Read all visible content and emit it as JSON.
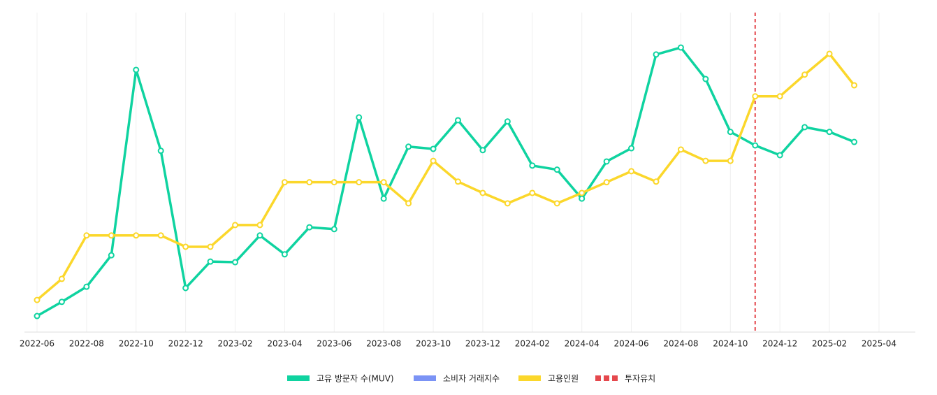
{
  "chart_data": {
    "type": "line",
    "x": [
      "2022-06",
      "2022-07",
      "2022-08",
      "2022-09",
      "2022-10",
      "2022-11",
      "2022-12",
      "2023-01",
      "2023-02",
      "2023-03",
      "2023-04",
      "2023-05",
      "2023-06",
      "2023-07",
      "2023-08",
      "2023-09",
      "2023-10",
      "2023-11",
      "2023-12",
      "2024-01",
      "2024-02",
      "2024-03",
      "2024-04",
      "2024-05",
      "2024-06",
      "2024-07",
      "2024-08",
      "2024-09",
      "2024-10",
      "2024-11",
      "2024-12",
      "2025-01",
      "2025-02",
      "2025-03"
    ],
    "xticks": [
      "2022-06",
      "2022-08",
      "2022-10",
      "2022-12",
      "2023-02",
      "2023-04",
      "2023-06",
      "2023-08",
      "2023-10",
      "2023-12",
      "2024-02",
      "2024-04",
      "2024-06",
      "2024-08",
      "2024-10",
      "2024-12",
      "2025-02",
      "2025-04"
    ],
    "ylim": [
      0,
      101.5
    ],
    "grid": true,
    "series": [
      {
        "name": "고유 방문자 수(MUV)",
        "color": "#0fd3a0",
        "values": [
          5.1,
          9.6,
          14.4,
          24.4,
          83.3,
          57.6,
          14.0,
          22.4,
          22.2,
          30.7,
          24.7,
          33.3,
          32.7,
          68.2,
          42.4,
          58.9,
          58.2,
          67.3,
          57.8,
          66.9,
          52.9,
          51.6,
          42.4,
          54.2,
          58.4,
          88.2,
          90.4,
          80.4,
          63.6,
          59.3,
          56.2,
          65.1,
          63.6,
          60.4
        ]
      },
      {
        "name": "소비자 거래지수",
        "color": "#7b93f5",
        "values": [
          null,
          null,
          null,
          null,
          null,
          null,
          null,
          null,
          null,
          null,
          null,
          null,
          null,
          null,
          null,
          null,
          null,
          null,
          null,
          null,
          null,
          null,
          null,
          null,
          null,
          null,
          null,
          null,
          null,
          null,
          null,
          null,
          null,
          null
        ]
      },
      {
        "name": "고용인원",
        "color": "#fbd72b",
        "values": [
          10.2,
          16.9,
          30.7,
          30.7,
          30.7,
          30.7,
          27.1,
          27.1,
          34.0,
          34.0,
          47.6,
          47.6,
          47.6,
          47.6,
          47.6,
          40.9,
          54.4,
          47.8,
          44.2,
          40.9,
          44.2,
          40.9,
          44.2,
          47.6,
          51.1,
          47.8,
          58.0,
          54.4,
          54.4,
          74.9,
          74.9,
          81.8,
          88.4,
          78.4
        ]
      }
    ],
    "markers": [
      {
        "name": "투자유치",
        "x": "2024-11",
        "color": "#e5484d"
      }
    ]
  }
}
